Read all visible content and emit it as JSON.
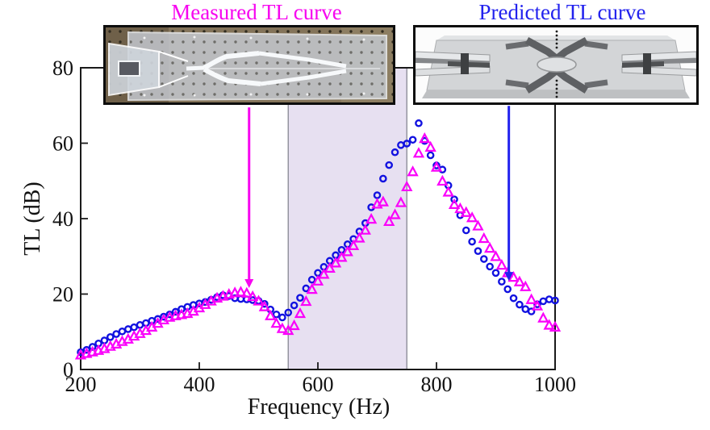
{
  "figure": {
    "measured_title": "Measured TL curve",
    "predicted_title": "Predicted TL curve",
    "measured_title_color": "#f704f0",
    "predicted_title_color": "#2222ee",
    "insets": [
      {
        "name": "specimen-photo",
        "description": "photo of fabricated specimen plate on optical breadboard"
      },
      {
        "name": "simulation-model",
        "description": "grey 3D render of predicted waveguide model"
      }
    ]
  },
  "chart_data": {
    "type": "scatter",
    "title": "",
    "xlabel": "Frequency (Hz)",
    "ylabel": "TL (dB)",
    "xlim": [
      200,
      1000
    ],
    "ylim": [
      0,
      80
    ],
    "x_ticks": [
      200,
      400,
      600,
      800,
      1000
    ],
    "y_ticks": [
      0,
      20,
      40,
      60,
      80
    ],
    "grid": false,
    "frame_color": "#1a1a1a",
    "highlight_band": {
      "x_from": 550,
      "x_to": 750,
      "fill": "#e7e0f1",
      "edge": "#8e8e99"
    },
    "series": [
      {
        "name": "Measured TL curve",
        "marker": "open-triangle",
        "color": "#fa00fa",
        "x": [
          200,
          210,
          220,
          230,
          240,
          250,
          260,
          270,
          280,
          290,
          300,
          310,
          320,
          330,
          340,
          350,
          360,
          370,
          380,
          390,
          400,
          410,
          420,
          430,
          440,
          450,
          460,
          470,
          480,
          490,
          500,
          510,
          520,
          530,
          540,
          550,
          560,
          570,
          580,
          590,
          600,
          610,
          620,
          630,
          640,
          650,
          660,
          670,
          680,
          690,
          700,
          710,
          720,
          730,
          740,
          750,
          760,
          770,
          780,
          790,
          800,
          810,
          820,
          830,
          840,
          850,
          860,
          870,
          880,
          890,
          900,
          910,
          920,
          930,
          940,
          950,
          960,
          970,
          980,
          990,
          1000
        ],
        "y": [
          3.8,
          4.2,
          4.6,
          5.0,
          5.5,
          6.1,
          6.7,
          7.4,
          8.0,
          8.8,
          9.5,
          10.3,
          11.2,
          12.2,
          13.1,
          13.8,
          14.2,
          14.5,
          14.8,
          15.4,
          16.3,
          17.2,
          18.1,
          18.9,
          19.4,
          19.9,
          20.3,
          20.5,
          20.2,
          19.3,
          18.1,
          16.6,
          14.2,
          12.2,
          10.8,
          10.3,
          11.6,
          14.8,
          18.0,
          21.2,
          23.4,
          25.2,
          26.8,
          28.2,
          29.7,
          31.2,
          32.8,
          34.8,
          36.9,
          39.8,
          43.8,
          44.4,
          39.2,
          41.0,
          44.2,
          48.4,
          52.4,
          57.3,
          61.2,
          58.9,
          53.6,
          49.9,
          47.0,
          43.7,
          42.6,
          41.6,
          40.2,
          38.0,
          34.7,
          32.1,
          29.9,
          27.6,
          25.6,
          24.4,
          23.2,
          21.9,
          18.5,
          16.8,
          13.6,
          11.7,
          11.2
        ]
      },
      {
        "name": "Predicted TL curve",
        "marker": "open-circle",
        "color": "#1212e0",
        "x": [
          200,
          210,
          220,
          230,
          240,
          250,
          260,
          270,
          280,
          290,
          300,
          310,
          320,
          330,
          340,
          350,
          360,
          370,
          380,
          390,
          400,
          410,
          420,
          430,
          440,
          450,
          460,
          470,
          480,
          490,
          500,
          510,
          520,
          530,
          540,
          550,
          560,
          570,
          580,
          590,
          600,
          610,
          620,
          630,
          640,
          650,
          660,
          670,
          680,
          690,
          700,
          710,
          720,
          730,
          740,
          750,
          760,
          770,
          780,
          790,
          800,
          810,
          820,
          830,
          840,
          850,
          860,
          870,
          880,
          890,
          900,
          910,
          920,
          930,
          940,
          950,
          960,
          970,
          980,
          990,
          1000
        ],
        "y": [
          4.6,
          5.2,
          6.0,
          6.9,
          7.7,
          8.6,
          9.4,
          10.1,
          10.7,
          11.2,
          11.8,
          12.3,
          12.9,
          13.4,
          14.0,
          14.6,
          15.3,
          16.0,
          16.6,
          17.1,
          17.5,
          17.9,
          18.5,
          19.2,
          19.7,
          19.5,
          18.9,
          18.7,
          18.6,
          18.4,
          18.2,
          17.4,
          15.9,
          14.6,
          13.8,
          15.1,
          17.0,
          19.0,
          21.5,
          23.8,
          25.6,
          27.2,
          28.8,
          30.3,
          31.7,
          33.2,
          34.6,
          36.6,
          38.8,
          43.0,
          46.2,
          50.6,
          54.2,
          57.6,
          59.5,
          59.9,
          60.9,
          65.3,
          60.6,
          56.8,
          54.1,
          53.0,
          48.8,
          45.1,
          40.9,
          36.9,
          33.9,
          31.4,
          29.3,
          27.3,
          25.6,
          23.3,
          21.3,
          18.9,
          17.2,
          16.0,
          15.4,
          17.3,
          18.1,
          18.6,
          18.3
        ]
      }
    ],
    "annotations": [
      {
        "type": "arrow",
        "points_to": "Measured TL curve",
        "color": "#f704f0",
        "x": 484,
        "y_from": 69.5,
        "y_to": 21.6
      },
      {
        "type": "arrow",
        "points_to": "Predicted TL curve",
        "color": "#2222ee",
        "x": 922,
        "y_from": 69.9,
        "y_to": 23.5
      }
    ]
  }
}
